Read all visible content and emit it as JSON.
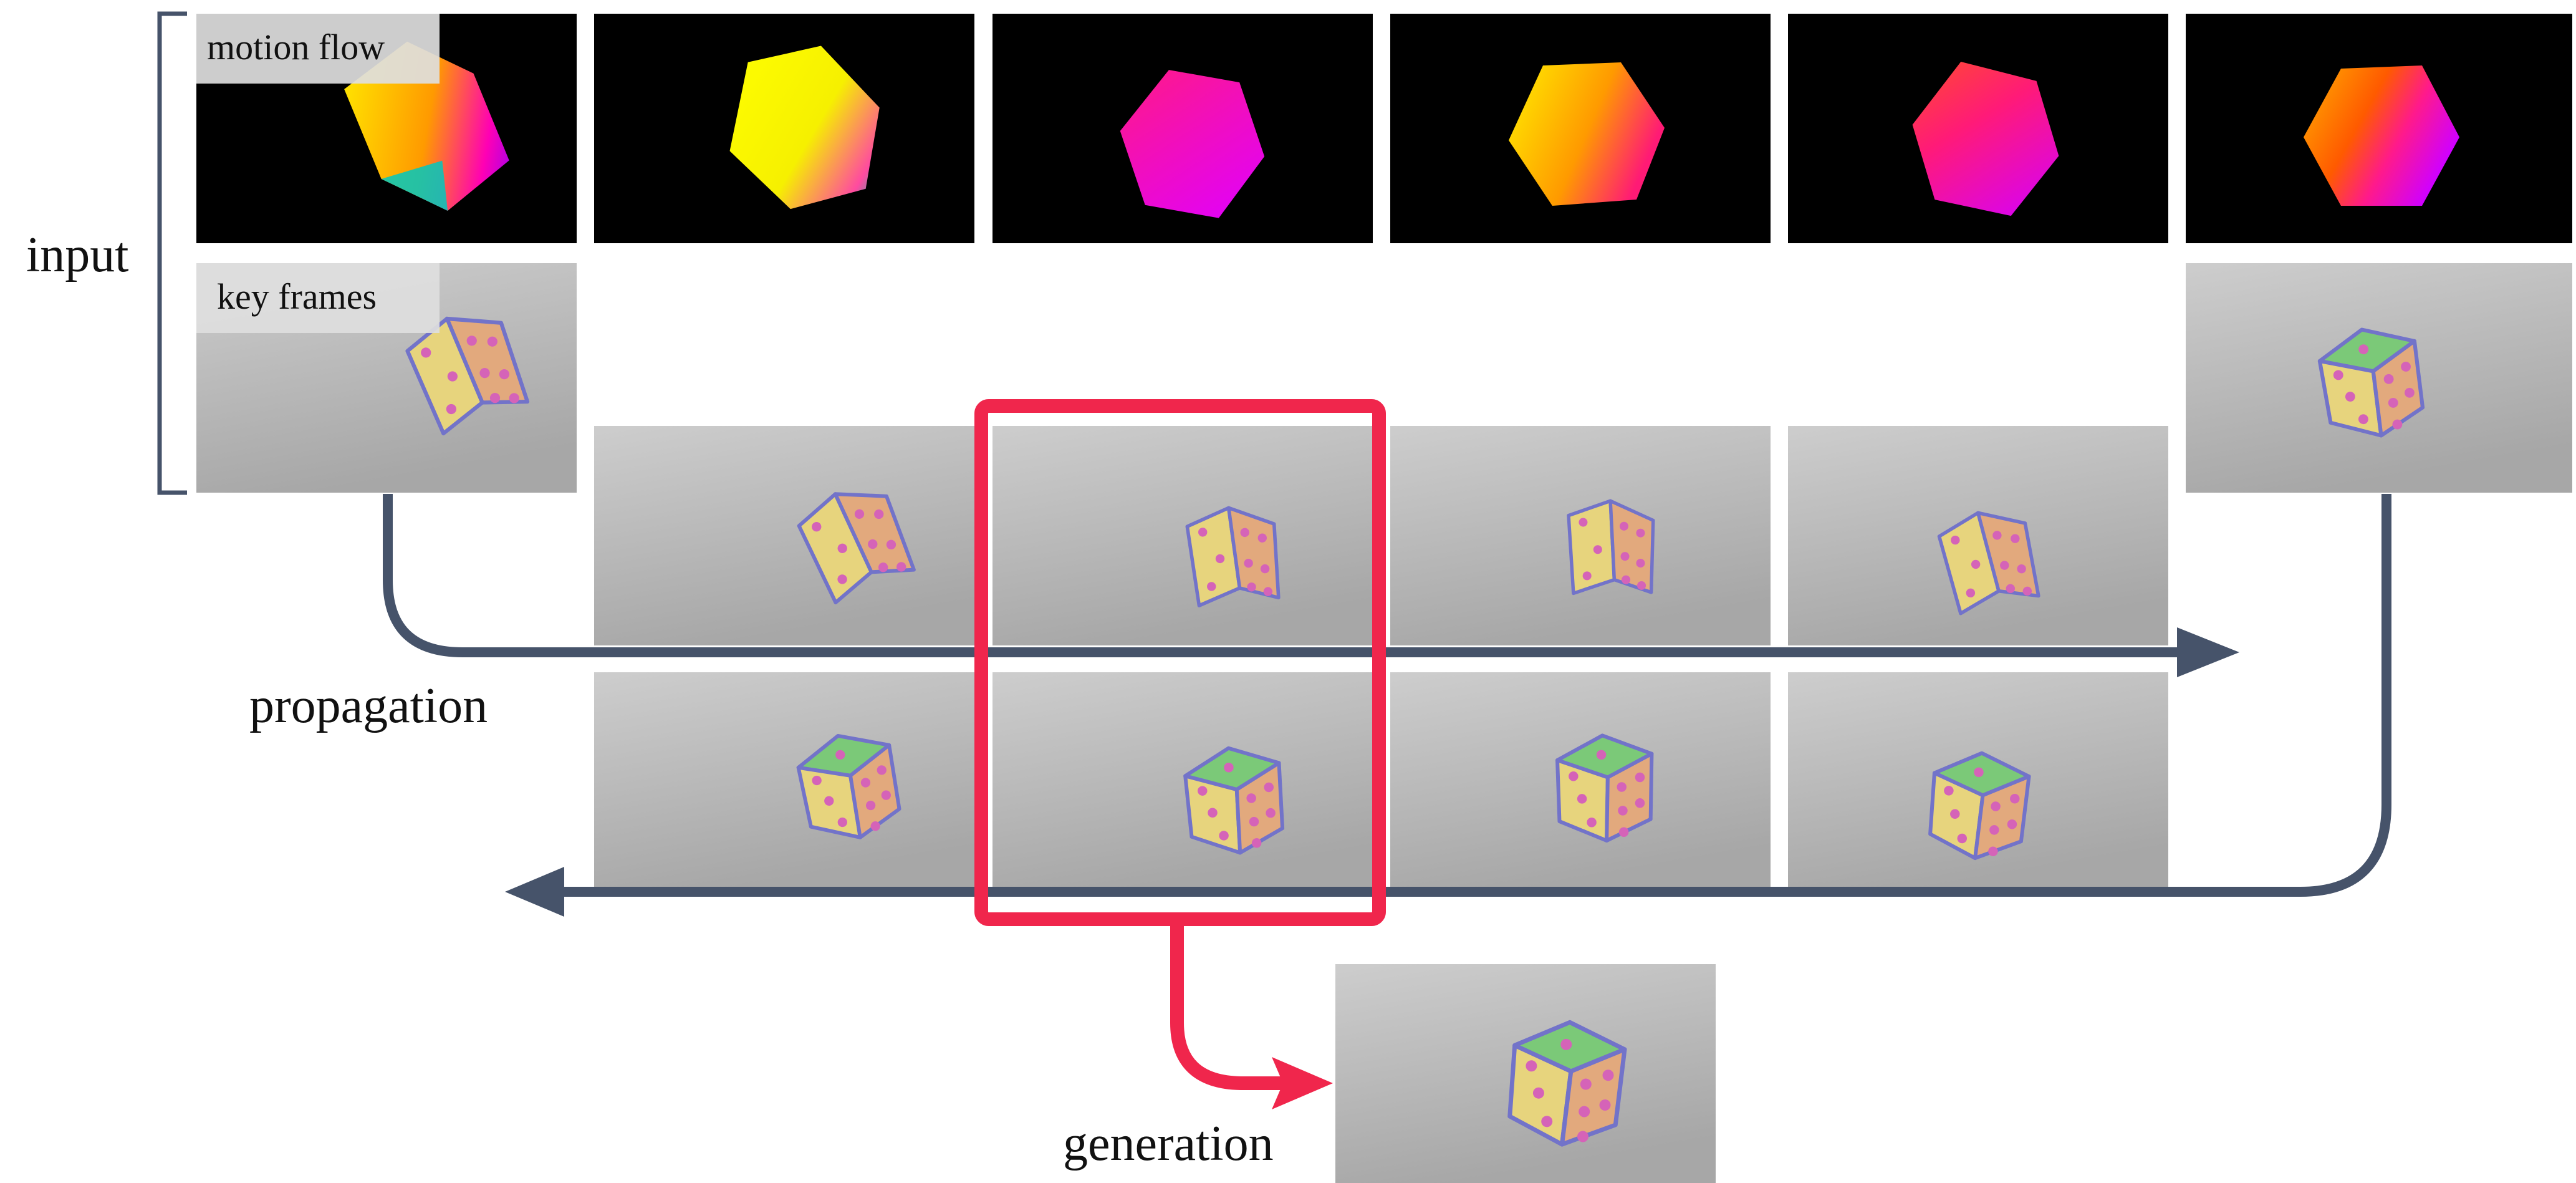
{
  "labels": {
    "input": "input",
    "motion_flow": "motion flow",
    "key_frames": "key frames",
    "propagation": "propagation",
    "generation": "generation"
  },
  "colors": {
    "arrow": "#46536a",
    "highlight": "#f0264c",
    "tag_bg": "#dedede",
    "frame_bg_light": "#c8c8c8",
    "frame_bg_dark": "#a9a9a9",
    "flow_bg": "#000000",
    "dice_fill": "#e6d37e",
    "dice_side": "#e3a97c",
    "dice_top": "#79c978",
    "dice_outline": "#7273c9",
    "dice_pip": "#d563b8"
  },
  "icons": {
    "flow_cube": "hexagonal-gradient-cube",
    "dice": "hand-drawn-dice"
  }
}
